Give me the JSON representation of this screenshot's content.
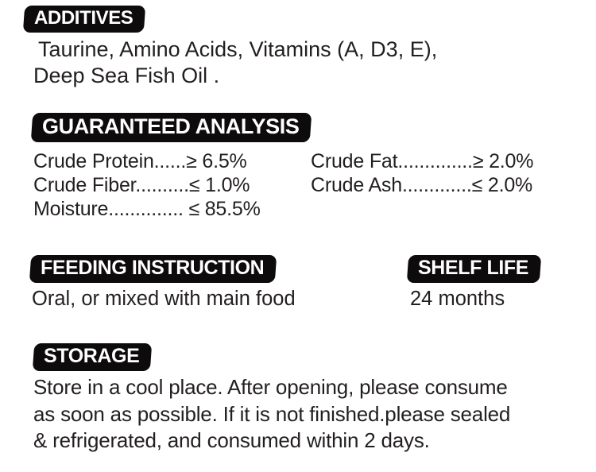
{
  "colors": {
    "badge_bg": "#0d0b0c",
    "text": "#231f20",
    "background": "#ffffff"
  },
  "additives": {
    "heading": "ADDITIVES",
    "lines": [
      "Taurine, Amino Acids, Vitamins (A, D3, E),",
      "Deep Sea Fish Oil ."
    ]
  },
  "analysis": {
    "heading": "GUARANTEED ANALYSIS",
    "left": [
      {
        "label": "Crude Protein",
        "leader": "......",
        "constraint": "≥ 6.5%"
      },
      {
        "label": "Crude Fiber",
        "leader": "..........",
        "constraint": "≤ 1.0%"
      },
      {
        "label": "Moisture",
        "leader": "..............",
        "constraint": " ≤ 85.5%"
      }
    ],
    "right": [
      {
        "label": "Crude Fat",
        "leader": "..............",
        "constraint": "≥ 2.0%"
      },
      {
        "label": "Crude Ash",
        "leader": ".............",
        "constraint": "≤ 2.0%"
      }
    ]
  },
  "feeding": {
    "heading": "FEEDING INSTRUCTION",
    "body": "Oral, or mixed with main food"
  },
  "shelf_life": {
    "heading": "SHELF LIFE",
    "body": "24 months"
  },
  "storage": {
    "heading": "STORAGE",
    "lines": [
      "Store in a cool place. After opening, please consume",
      "as soon as possible. If it is not finished.please sealed",
      "& refrigerated, and consumed within 2 days."
    ]
  }
}
